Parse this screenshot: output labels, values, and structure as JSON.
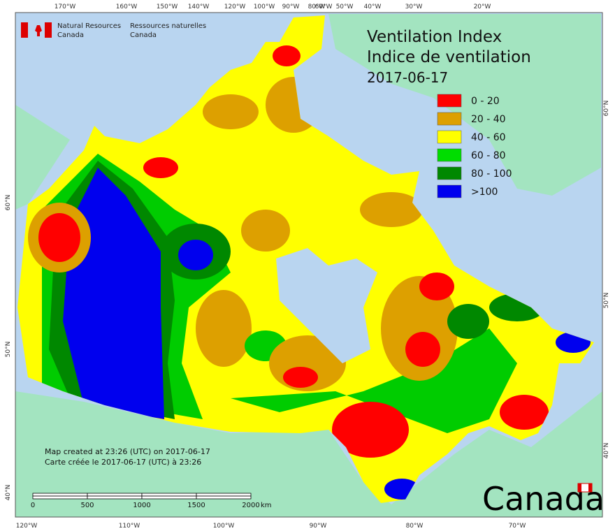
{
  "header": {
    "en_line1": "Natural Resources",
    "en_line2": "Canada",
    "fr_line1": "Ressources naturelles",
    "fr_line2": "Canada"
  },
  "title": {
    "line1": "Ventilation Index",
    "line2": "Indice de ventilation",
    "date": "2017-06-17"
  },
  "legend": [
    {
      "label": "0 - 20",
      "color": "#ff0000"
    },
    {
      "label": "20 - 40",
      "color": "#dda000"
    },
    {
      "label": "40 - 60",
      "color": "#ffff00"
    },
    {
      "label": "60 - 80",
      "color": "#00dd00"
    },
    {
      "label": "80 - 100",
      "color": "#008800"
    },
    {
      "label": ">100",
      "color": "#0000ee"
    }
  ],
  "graticule": {
    "top": [
      "170°W",
      "160°W",
      "150°W",
      "140°W",
      "120°W",
      "100°W",
      "90°W",
      "80°W",
      "60°W",
      "50°W",
      "40°W",
      "30°W",
      "20°W"
    ],
    "bottom": [
      "120°W",
      "110°W",
      "100°W",
      "90°W",
      "80°W",
      "70°W"
    ],
    "left": [
      "60°N",
      "50°N",
      "40°N"
    ],
    "right": [
      "60°N",
      "50°N",
      "40°N"
    ]
  },
  "credits": {
    "en": "Map created at 23:26 (UTC) on 2017-06-17",
    "fr": "Carte créée le 2017-06-17 (UTC) à 23:26"
  },
  "scale_bar": {
    "labels": [
      "0",
      "500",
      "1000",
      "1500",
      "2000"
    ],
    "unit": "km"
  },
  "wordmark": "Canada"
}
